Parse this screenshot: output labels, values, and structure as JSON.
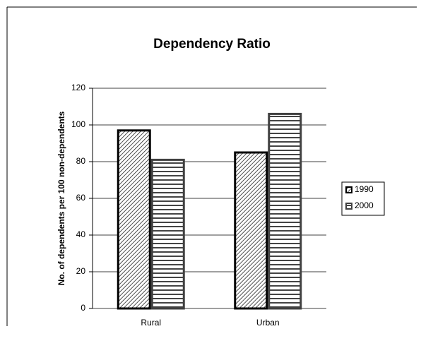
{
  "chart_data": {
    "type": "bar",
    "title": "Dependency Ratio",
    "y_label": "No. of dependents per 100 non-dependents",
    "categories": [
      "Rural",
      "Urban"
    ],
    "series": [
      {
        "name": "1990",
        "color": "#000000",
        "values": [
          97,
          85
        ]
      },
      {
        "name": "2000",
        "color": "#404040",
        "values": [
          81,
          106
        ]
      }
    ],
    "ylim": [
      0,
      120
    ],
    "yticks": [
      0,
      20,
      40,
      60,
      80,
      100,
      120
    ],
    "grid": true,
    "legend": "right"
  }
}
